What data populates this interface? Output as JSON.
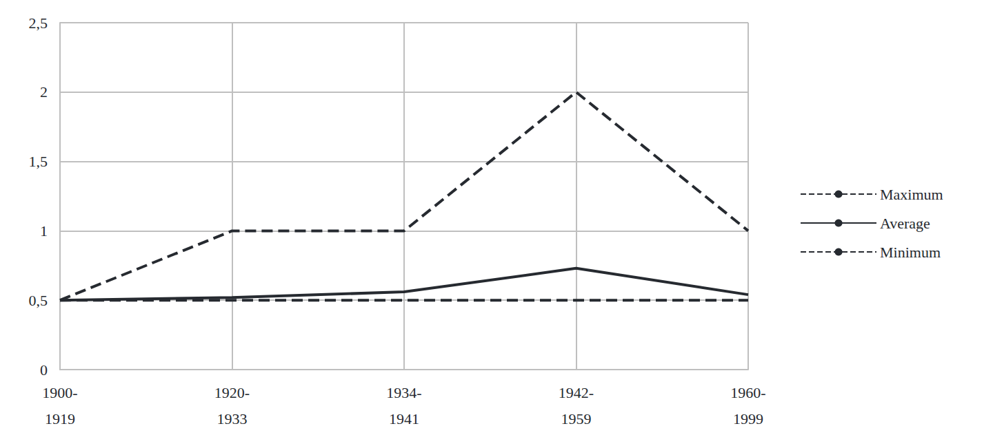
{
  "chart_data": {
    "type": "line",
    "categories": [
      "1900-\n1919",
      "1920-\n1933",
      "1934-\n1941",
      "1942-\n1959",
      "1960-\n1999"
    ],
    "series": [
      {
        "name": "Maximum",
        "color": "#262a30",
        "line_style": "dashed",
        "values": [
          0.5,
          1,
          1,
          2,
          1
        ]
      },
      {
        "name": "Average",
        "color": "#262a30",
        "line_style": "solid",
        "values": [
          0.5,
          0.52,
          0.56,
          0.73,
          0.54
        ]
      },
      {
        "name": "Minimum",
        "color": "#262a30",
        "line_style": "dashed",
        "values": [
          0.5,
          0.5,
          0.5,
          0.5,
          0.5
        ]
      }
    ],
    "ylim": [
      0,
      2.5
    ],
    "yticks": [
      0,
      {
        "value": 0.5,
        "label": "0,5"
      },
      1,
      {
        "value": 1.5,
        "label": "1,5"
      },
      2,
      {
        "value": 2.5,
        "label": "2,5"
      }
    ],
    "grid": true,
    "legend": "right",
    "marker": "none"
  }
}
